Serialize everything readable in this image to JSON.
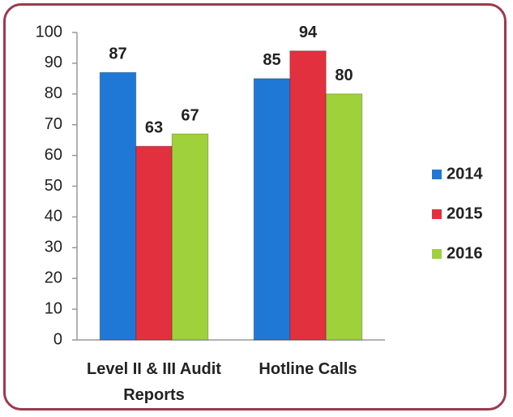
{
  "chart_data": {
    "type": "bar",
    "categories": [
      "Level II & III Audit Reports",
      "Hotline Calls"
    ],
    "series": [
      {
        "name": "2014",
        "color": "#1f78d6",
        "values": [
          87,
          85
        ]
      },
      {
        "name": "2015",
        "color": "#e2303f",
        "values": [
          63,
          94
        ]
      },
      {
        "name": "2016",
        "color": "#9fd13a",
        "values": [
          67,
          80
        ]
      }
    ],
    "ylim": [
      0,
      100
    ],
    "yticks": [
      0,
      10,
      20,
      30,
      40,
      50,
      60,
      70,
      80,
      90,
      100
    ],
    "grid": false,
    "legend": "right",
    "data_labels": true
  }
}
